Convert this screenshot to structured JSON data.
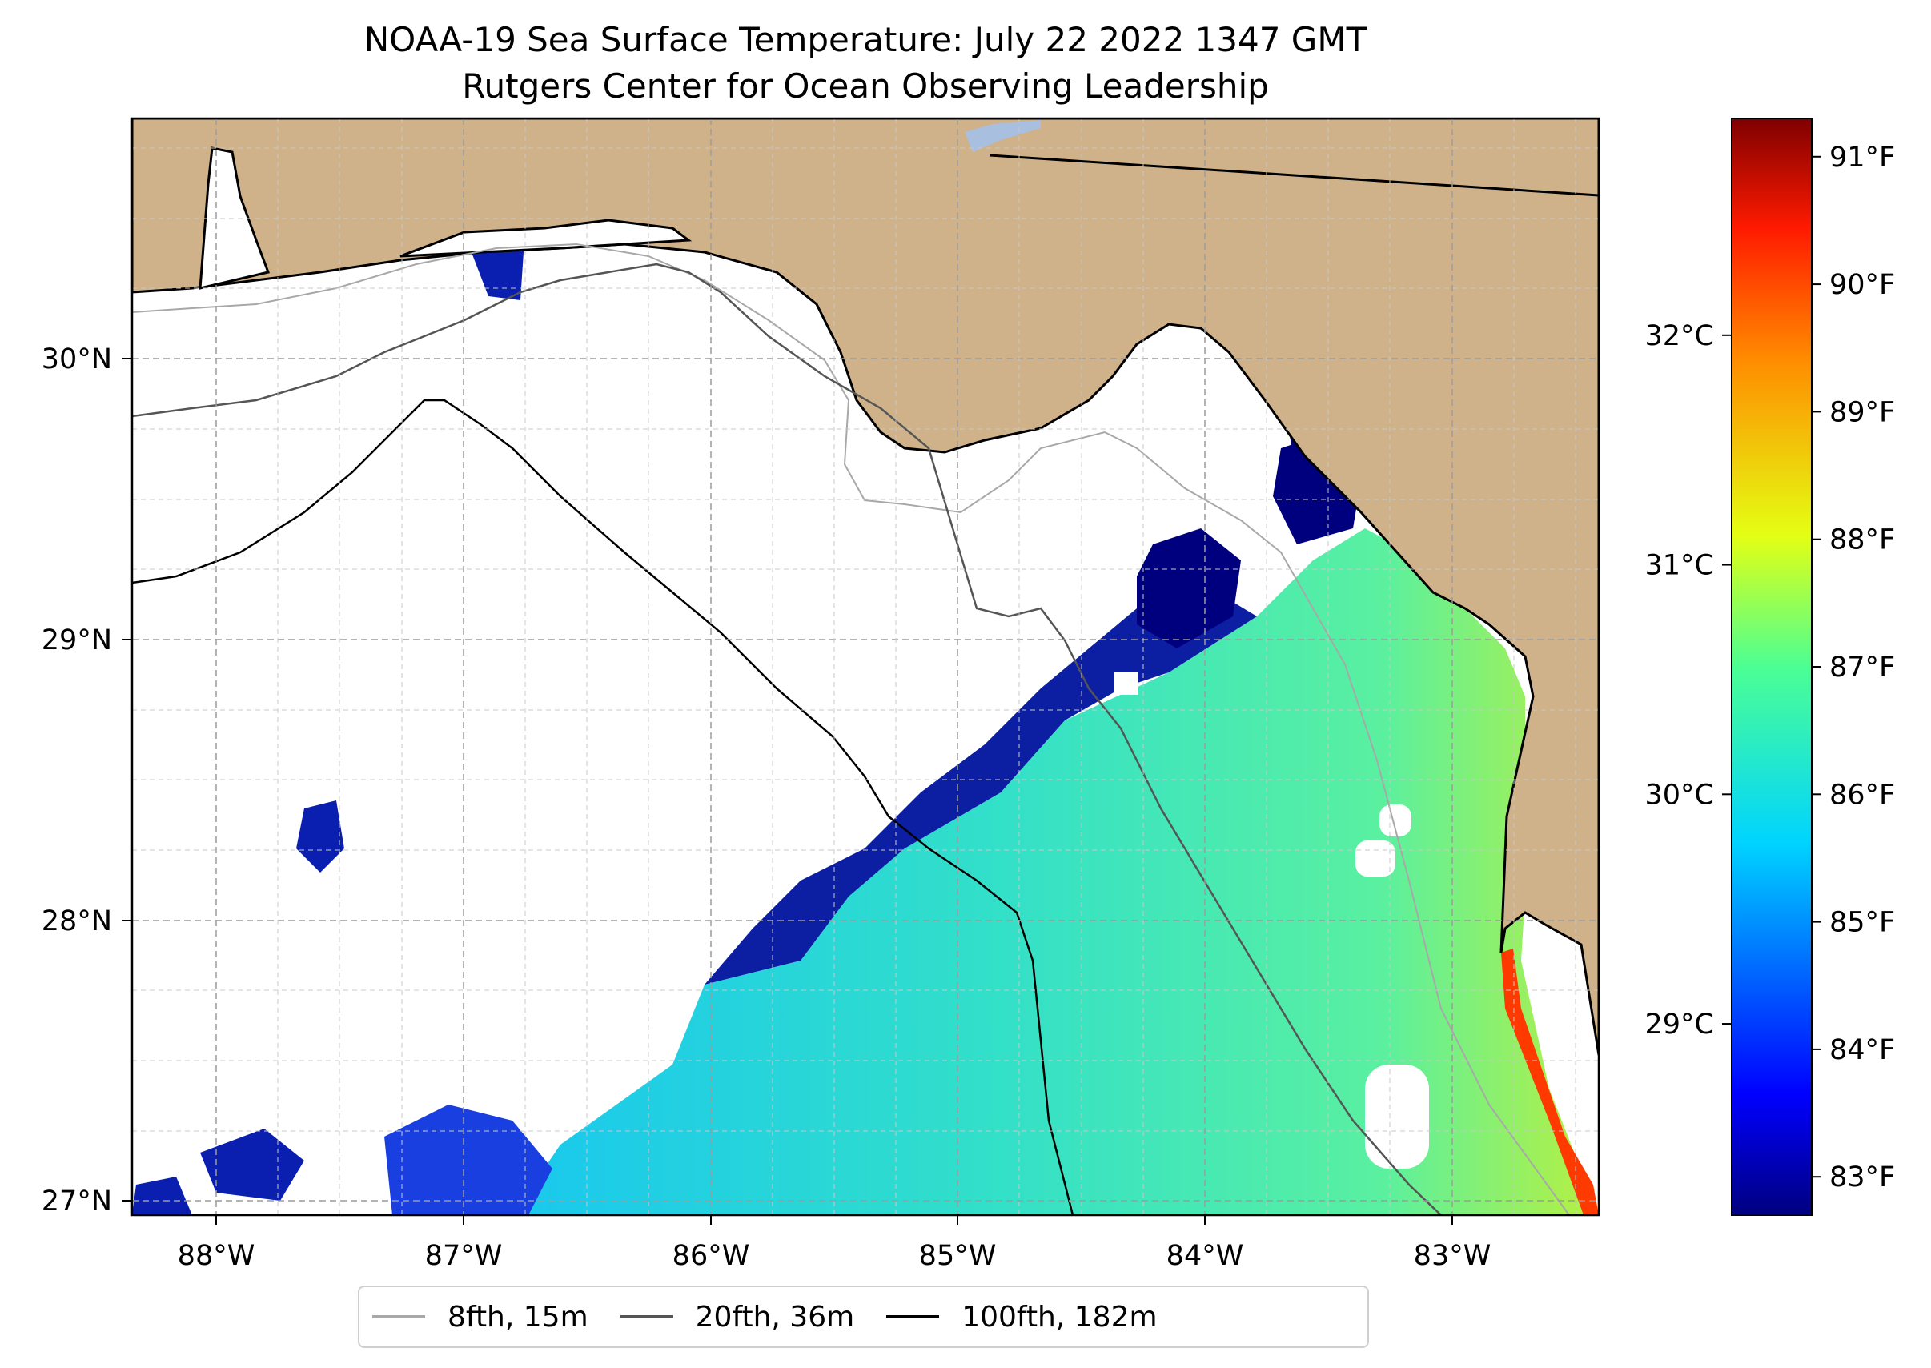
{
  "title": {
    "line1": "NOAA-19 Sea Surface Temperature: July 22 2022 1347 GMT",
    "line2": "Rutgers Center for Ocean Observing Leadership"
  },
  "map": {
    "lon_range": [
      -88.33,
      -82.4
    ],
    "lat_range": [
      26.94,
      30.85
    ],
    "land_color": "#d0b28a",
    "sea_color": "#ffffff",
    "grid_style": "dashed light gray",
    "x_ticks": [
      "88°W",
      "87°W",
      "86°W",
      "85°W",
      "84°W",
      "83°W"
    ],
    "y_ticks": [
      "30°N",
      "29°N",
      "28°N",
      "27°N"
    ]
  },
  "colorbar": {
    "colormap": "jet",
    "fahrenheit_range": [
      82.7,
      91.3
    ],
    "fahrenheit_ticks": [
      "83°F",
      "84°F",
      "85°F",
      "86°F",
      "87°F",
      "88°F",
      "89°F",
      "90°F",
      "91°F"
    ],
    "celsius_ticks": [
      "29°C",
      "30°C",
      "31°C",
      "32°C"
    ]
  },
  "legend": {
    "items": [
      {
        "label": "8fth, 15m",
        "color": "#a8a8a8"
      },
      {
        "label": "20fth, 36m",
        "color": "#555555"
      },
      {
        "label": "100fth, 182m",
        "color": "#000000"
      }
    ]
  }
}
